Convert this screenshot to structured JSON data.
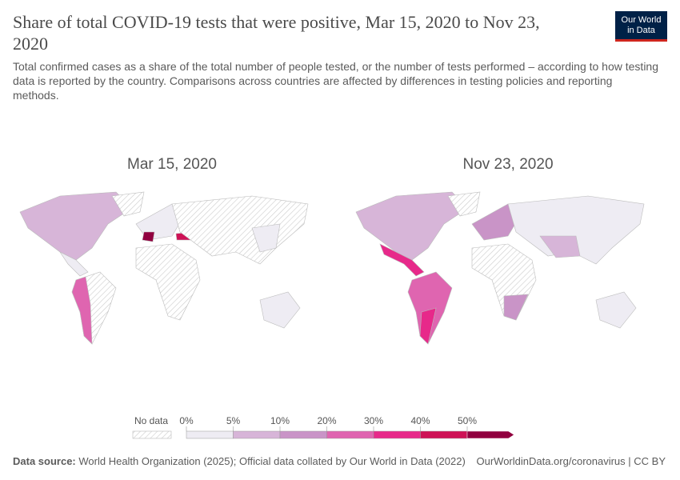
{
  "header": {
    "title": "Share of total COVID-19 tests that were positive, Mar 15, 2020 to Nov 23, 2020",
    "subtitle": "Total confirmed cases as a share of the total number of people tested, or the number of tests performed – according to how testing data is reported by the country. Comparisons across countries are affected by differences in testing policies and reporting methods.",
    "logo": [
      "Our World",
      "in Data"
    ]
  },
  "maps": [
    {
      "title": "Mar 15, 2020"
    },
    {
      "title": "Nov 23, 2020"
    }
  ],
  "legend": {
    "no_data": "No data",
    "ticks": [
      {
        "value": 0,
        "label": "0%"
      },
      {
        "value": 5,
        "label": "5%"
      },
      {
        "value": 10,
        "label": "10%"
      },
      {
        "value": 20,
        "label": "20%"
      },
      {
        "value": 30,
        "label": "30%"
      },
      {
        "value": 40,
        "label": "40%"
      },
      {
        "value": 50,
        "label": "50%"
      }
    ],
    "colors": [
      "#eeecf3",
      "#d7b5d8",
      "#c994c7",
      "#df65b0",
      "#e7298a",
      "#ce1256",
      "#91003f"
    ]
  },
  "footer": {
    "source_label": "Data source:",
    "source": "World Health Organization (2025); Official data collated by Our World in Data (2022)",
    "url": "OurWorldinData.org/coronavirus | CC BY"
  }
}
